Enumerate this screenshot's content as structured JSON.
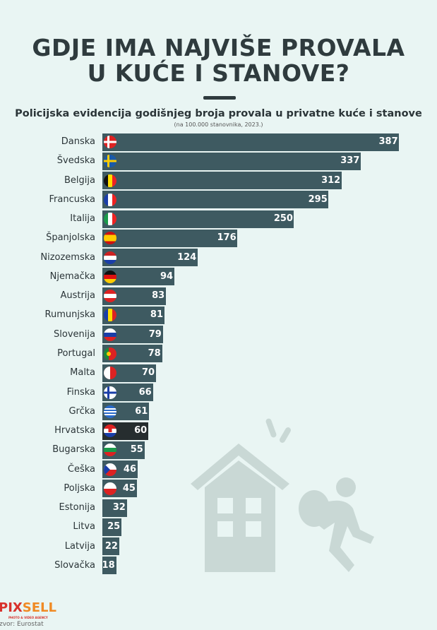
{
  "title_lines": [
    "GDJE IMA NAJVIŠE PROVALA",
    "U KUĆE I STANOVE?"
  ],
  "chart_data": {
    "type": "bar",
    "orientation": "horizontal",
    "title": "Policijska evidencija godišnjeg broja provala u privatne kuće i stanove",
    "subtitle": "(na 100.000 stanovnika, 2023.)",
    "categories": [
      "Danska",
      "Švedska",
      "Belgija",
      "Francuska",
      "Italija",
      "Španjolska",
      "Nizozemska",
      "Njemačka",
      "Austrija",
      "Rumunjska",
      "Slovenija",
      "Portugal",
      "Malta",
      "Finska",
      "Grčka",
      "Hrvatska",
      "Bugarska",
      "Češka",
      "Poljska",
      "Estonija",
      "Litva",
      "Latvija",
      "Slovačka"
    ],
    "values": [
      387,
      337,
      312,
      295,
      250,
      176,
      124,
      94,
      83,
      81,
      79,
      78,
      70,
      66,
      61,
      60,
      55,
      46,
      45,
      32,
      25,
      22,
      18
    ],
    "highlighted": "Hrvatska",
    "flags": [
      "dk",
      "se",
      "be",
      "fr",
      "it",
      "es",
      "nl",
      "de",
      "at",
      "ro",
      "si",
      "pt",
      "mt",
      "fi",
      "gr",
      "hr",
      "bg",
      "cz",
      "pl",
      "",
      "",
      "",
      ""
    ],
    "colors": {
      "bar": "#3e5a61",
      "highlight": "#262d2f",
      "background": "#e9f5f3",
      "illustration": "#c9d8d5"
    }
  },
  "logo": {
    "text_a": "PIX",
    "text_b": "SELL",
    "tagline": "PHOTO & VIDEO AGENCY"
  },
  "source": "zvor: Eurostat"
}
